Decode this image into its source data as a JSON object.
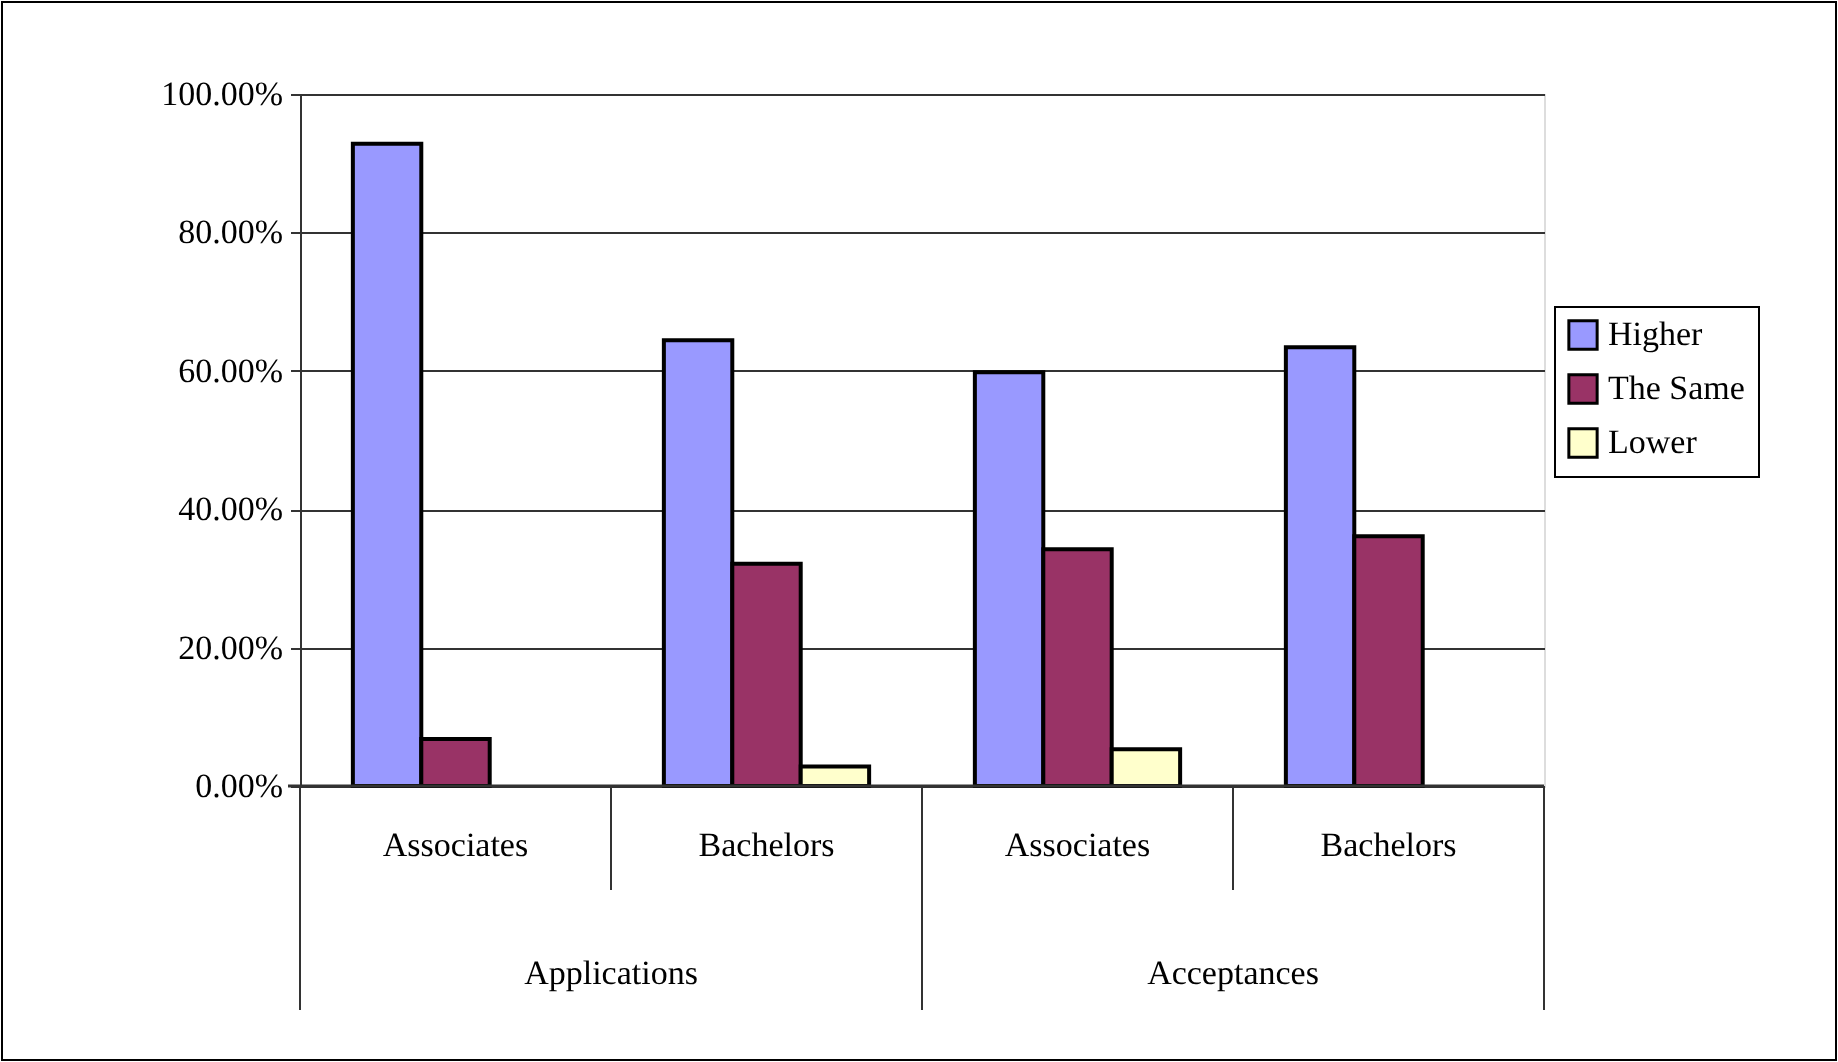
{
  "chart_data": {
    "type": "bar",
    "categories": [
      "Associates",
      "Bachelors",
      "Associates",
      "Bachelors"
    ],
    "annotations": [
      "Applications",
      "Acceptances"
    ],
    "series": [
      {
        "name": "Higher",
        "color": "#9999ff",
        "values": [
          92.8,
          64.4,
          59.8,
          63.4
        ]
      },
      {
        "name": "The Same",
        "color": "#993366",
        "values": [
          6.8,
          32.1,
          34.2,
          36.1
        ]
      },
      {
        "name": "Lower",
        "color": "#ffffcc",
        "values": [
          null,
          2.8,
          5.3,
          null
        ]
      }
    ],
    "ylim": [
      0,
      100
    ],
    "yticks": [
      {
        "value": 0,
        "label": "0.00%"
      },
      {
        "value": 20,
        "label": "20.00%"
      },
      {
        "value": 40,
        "label": "40.00%"
      },
      {
        "value": 60,
        "label": "60.00%"
      },
      {
        "value": 80,
        "label": "80.00%"
      },
      {
        "value": 100,
        "label": "100.00%"
      }
    ],
    "grid": "y",
    "legend": "right"
  }
}
